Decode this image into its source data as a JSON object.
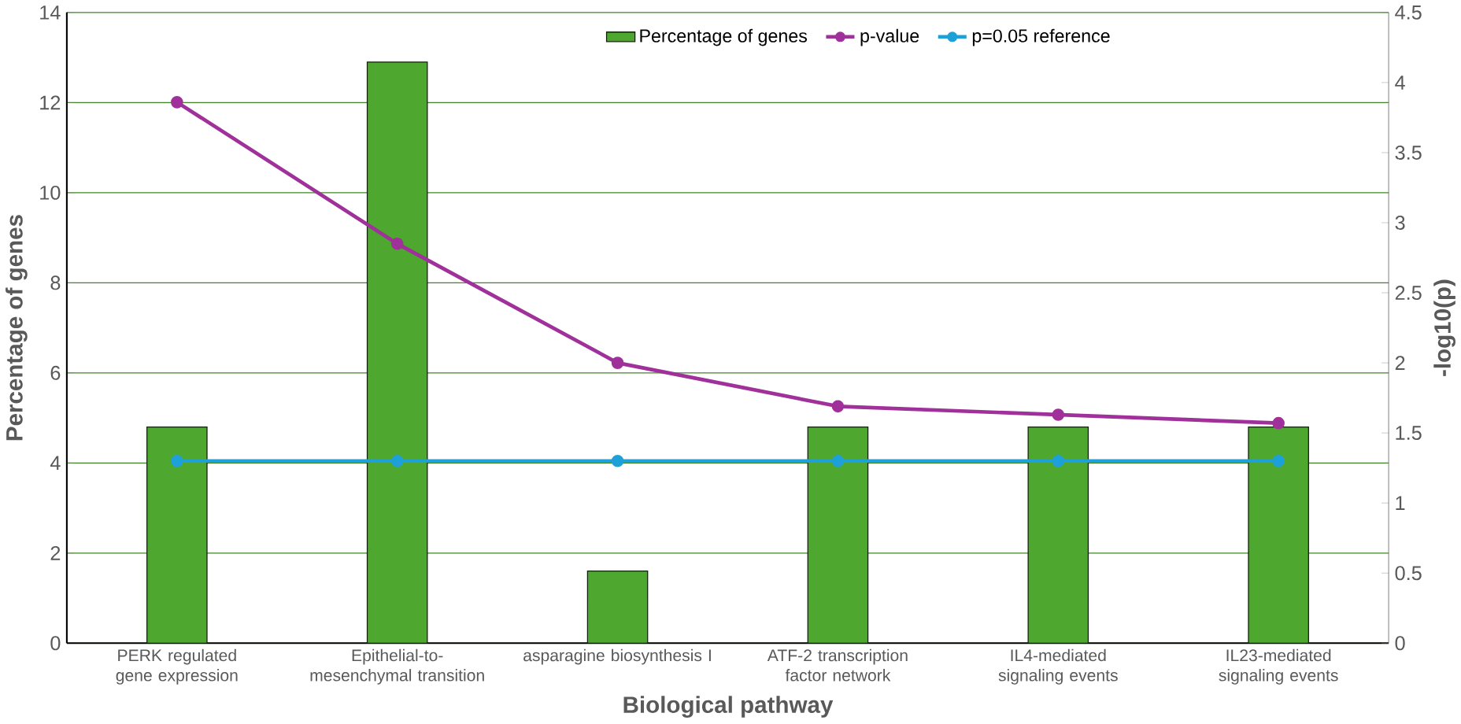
{
  "chart_data": {
    "type": "bar",
    "xlabel": "Biological pathway",
    "ylabel": "Percentage of genes",
    "y2label": "-log10(p)",
    "categories": [
      "PERK regulated gene expression",
      "Epithelial-to-mesenchymal transition",
      "asparagine biosynthesis I",
      "ATF-2 transcription factor network",
      "IL4-mediated signaling events",
      "IL23-mediated signaling events"
    ],
    "series": [
      {
        "name": "Percentage of genes",
        "color": "#4ea72e",
        "values": [
          4.8,
          12.9,
          1.6,
          4.8,
          4.8,
          4.8
        ]
      },
      {
        "name": "p-value",
        "type": "line",
        "axis": "y2",
        "color": "#a0309a",
        "values": [
          3.86,
          2.85,
          2.0,
          1.69,
          1.63,
          1.57
        ]
      },
      {
        "name": "p=0.05 reference",
        "type": "line",
        "axis": "y2",
        "color": "#1ea0d8",
        "values": [
          1.3,
          1.3,
          1.3,
          1.3,
          1.3,
          1.3
        ]
      }
    ],
    "ylim": [
      0,
      14
    ],
    "yticks": [
      0,
      2,
      4,
      6,
      8,
      10,
      12,
      14
    ],
    "y2lim": [
      0,
      4.5
    ],
    "y2ticks": [
      0,
      0.5,
      1,
      1.5,
      2,
      2.5,
      3,
      3.5,
      4,
      4.5
    ],
    "grid": "y",
    "legend": "top",
    "marker": "circle"
  }
}
